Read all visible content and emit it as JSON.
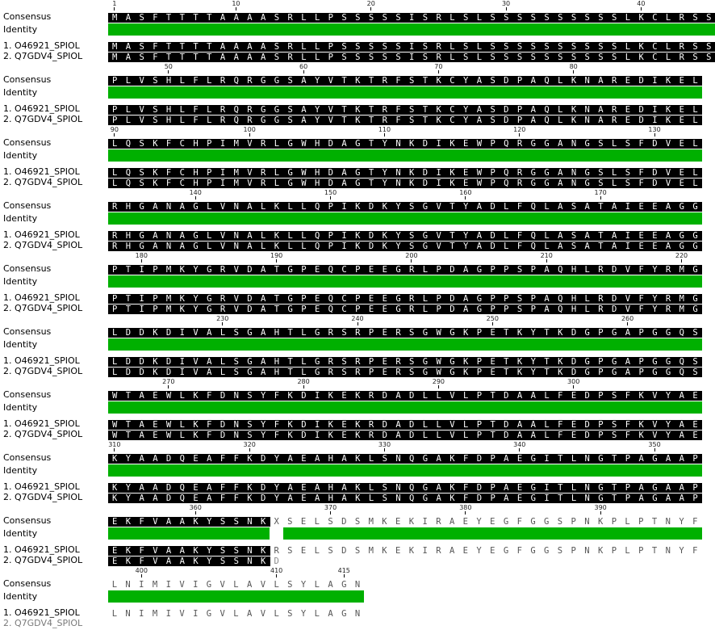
{
  "labels": {
    "consensus": "Consensus",
    "identity": "Identity",
    "seq1": "1. O46921_SPIOL",
    "seq2": "2. Q7GDV4_SPIOL"
  },
  "colors": {
    "identical_bg": "#000000",
    "identical_fg": "#ffffff",
    "identity_bar": "#00b000",
    "gap_fg": "#555555"
  },
  "blocks": [
    {
      "start": 1,
      "ticks": [
        1,
        10,
        20,
        30,
        40
      ],
      "consensus": "MASFTTTTAAAASRLLPSSSSSISRLSLSSSSSSSSSSLKCLRSS",
      "seq1": "MASFTTTTAAAASRLLPSSSSSISRLSLSSSSSSSSSSLKCLRSS",
      "seq2": "MASFTTTTAAAASRLLPSSSSSISRLSLSSSSSSSSSSLKCLRSS",
      "identical": 45,
      "seq2_len": 45
    },
    {
      "start": 46,
      "ticks": [
        50,
        60,
        70,
        80
      ],
      "consensus": "PLVSHLFLRQRGGSAYVTKTRFSTKCYASDPAQLKNAREDIKEL",
      "seq1": "PLVSHLFLRQRGGSAYVTKTRFSTKCYASDPAQLKNAREDIKEL",
      "seq2": "PLVSHLFLRQRGGSAYVTKTRFSTKCYASDPAQLKNAREDIKEL",
      "identical": 44,
      "seq2_len": 44
    },
    {
      "start": 90,
      "ticks": [
        90,
        100,
        110,
        120,
        130
      ],
      "consensus": "LQSKFCHPIMVRLGWHDAGTYNKDIKEWPQRGGANGSLSFDVEL",
      "seq1": "LQSKFCHPIMVRLGWHDAGTYNKDIKEWPQRGGANGSLSFDVEL",
      "seq2": "LQSKFCHPIMVRLGWHDAGTYNKDIKEWPQRGGANGSLSFDVEL",
      "identical": 44,
      "seq2_len": 44
    },
    {
      "start": 134,
      "ticks": [
        140,
        150,
        160,
        170
      ],
      "consensus": "RHGANAGLVNALKLLQPIKDKYSGVTYADLFQLASATAIEEAGG",
      "seq1": "RHGANAGLVNALKLLQPIKDKYSGVTYADLFQLASATAIEEAGG",
      "seq2": "RHGANAGLVNALKLLQPIKDKYSGVTYADLFQLASATAIEEAGG",
      "identical": 44,
      "seq2_len": 44
    },
    {
      "start": 178,
      "ticks": [
        180,
        190,
        200,
        210,
        220
      ],
      "consensus": "PTIPMKYGRVDATGPEQCPEEGRLPDAGPPSPAQHLRDVFYRMG",
      "seq1": "PTIPMKYGRVDATGPEQCPEEGRLPDAGPPSPAQHLRDVFYRMG",
      "seq2": "PTIPMKYGRVDATGPEQCPEEGRLPDAGPPSPAQHLRDVFYRMG",
      "identical": 44,
      "seq2_len": 44
    },
    {
      "start": 222,
      "ticks": [
        230,
        240,
        250,
        260
      ],
      "consensus": "LDDKDIVALSGAHTLGRSRPERSGWGKPETKYTKDGPGAPGGQS",
      "seq1": "LDDKDIVALSGAHTLGRSRPERSGWGKPETKYTKDGPGAPGGQS",
      "seq2": "LDDKDIVALSGAHTLGRSRPERSGWGKPETKYTKDGPGAPGGQS",
      "identical": 44,
      "seq2_len": 44
    },
    {
      "start": 266,
      "ticks": [
        270,
        280,
        290,
        300
      ],
      "consensus": "WTAEWLKFDNSYFKDIKEKRDADLLVLPTDAALFEDPSFKVYAE",
      "seq1": "WTAEWLKFDNSYFKDIKEKRDADLLVLPTDAALFEDPSFKVYAE",
      "seq2": "WTAEWLKFDNSYFKDIKEKRDADLLVLPTDAALFEDPSFKVYAE",
      "identical": 44,
      "seq2_len": 44
    },
    {
      "start": 310,
      "ticks": [
        310,
        320,
        330,
        340,
        350
      ],
      "consensus": "KYAADQEAFFKDYAEAHAKLSNQGAKFDPAEGITLNGTPAGAAP",
      "seq1": "KYAADQEAFFKDYAEAHAKLSNQGAKFDPAEGITLNGTPAGAAP",
      "seq2": "KYAADQEAFFKDYAEAHAKLSNQGAKFDPAEGITLNGTPAGAAP",
      "identical": 44,
      "seq2_len": 44
    },
    {
      "start": 354,
      "ticks": [
        360,
        370,
        380,
        390
      ],
      "consensus": "EKFVAAKYSSNKXSELSDSMKEKIRAEYEGFGGSPNKPLPTNYF",
      "seq1": "EKFVAAKYSSNKRSELSDSMKEKIRAEYEGFGGSPNKPLPTNYF",
      "seq2": "EKFVAAKYSSNKD",
      "identical": 12,
      "gap_at": 12,
      "seq2_len": 13
    },
    {
      "start": 398,
      "ticks": [
        400,
        410,
        415
      ],
      "consensus": "LNIMIVIGVLAVLSYLAGN",
      "seq1": "LNIMIVIGVLAVLSYLAGN",
      "seq2": "",
      "identical": 0,
      "seq2_len": 0
    }
  ]
}
